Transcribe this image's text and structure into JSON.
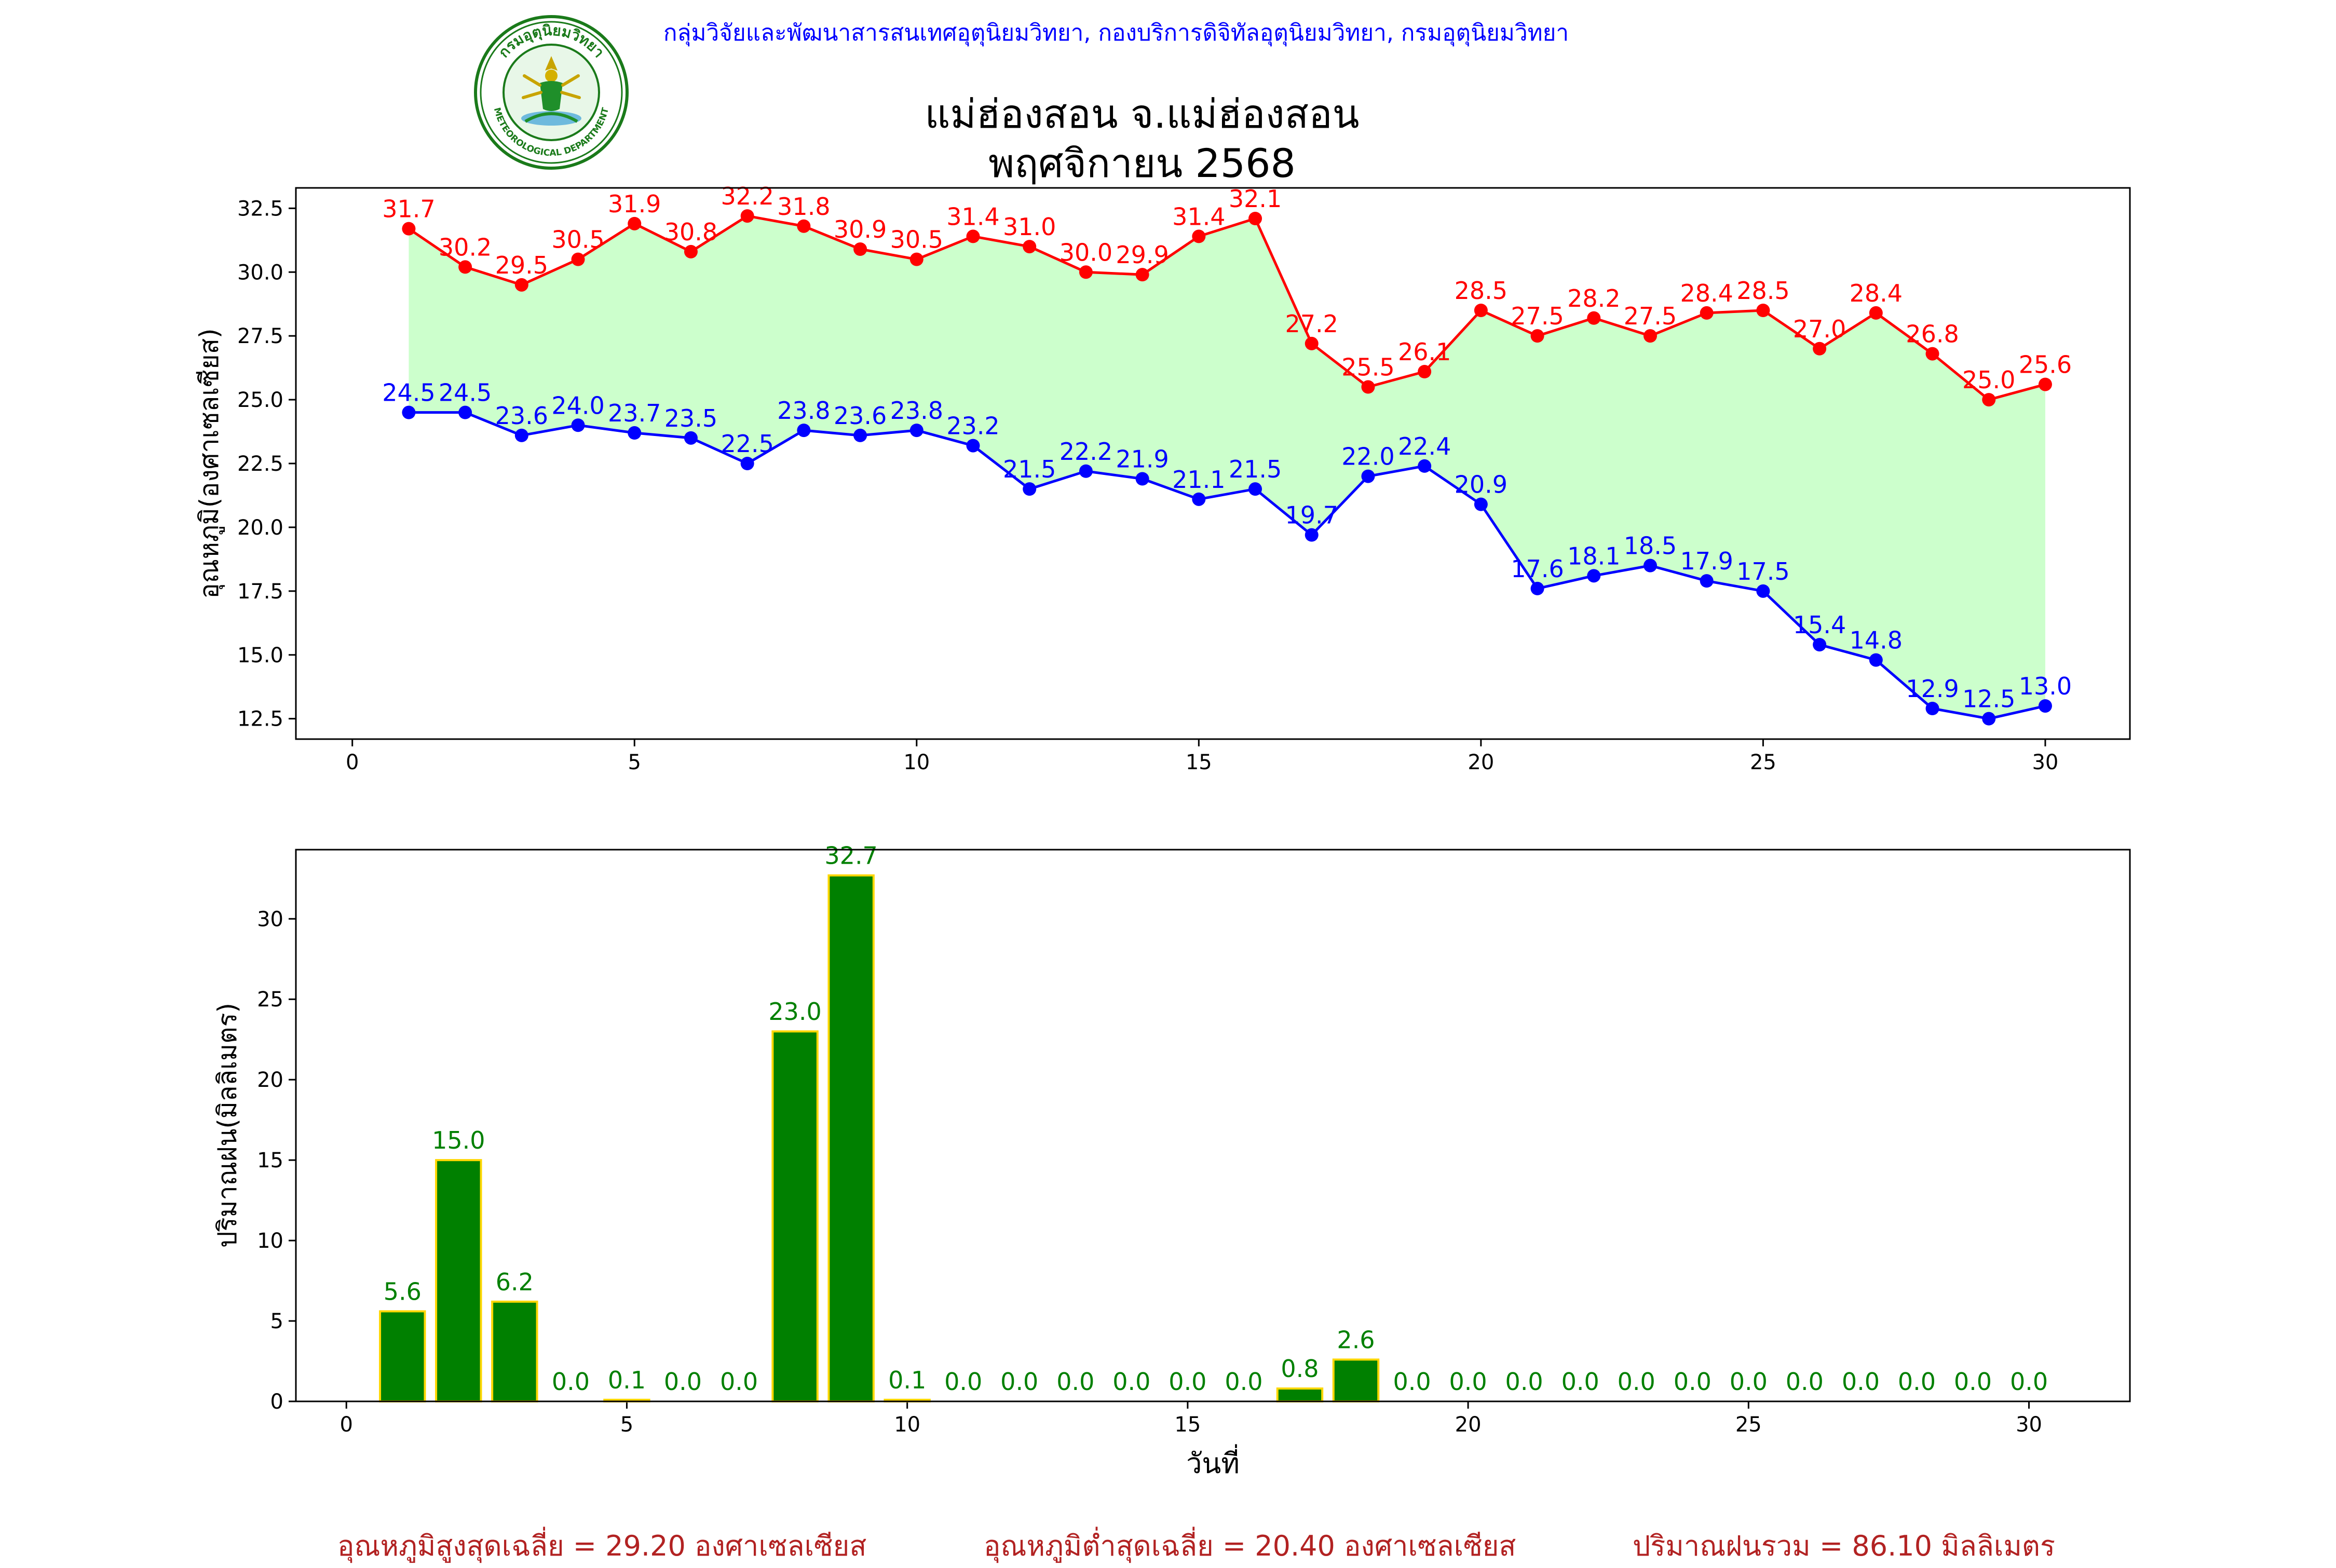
{
  "header": {
    "credit": "กลุ่มวิจัยและพัฒนาสารสนเทศอุตุนิยมวิทยา, กองบริการดิจิทัลอุตุนิยมวิทยา, กรมอุตุนิยมวิทยา",
    "title_line1": "แม่ฮ่องสอน จ.แม่ฮ่องสอน",
    "title_line2": "พฤศจิกายน 2568",
    "logo_text": "METEOROLOGICAL DEPARTMENT",
    "logo_thai": "กรมอุตุนิยมวิทยา"
  },
  "colors": {
    "max_line": "#ff0000",
    "min_line": "#0000ff",
    "band_fill": "#ccffcc",
    "bar_fill": "#008000",
    "bar_edge": "#ffd700",
    "bar_label": "#008000",
    "footer_text": "#b22222",
    "credit_text": "#0000ff"
  },
  "chart_data": [
    {
      "type": "line",
      "title": "",
      "xlabel": "",
      "ylabel": "อุณหภูมิ(องศาเซลเซียส)",
      "x": [
        1,
        2,
        3,
        4,
        5,
        6,
        7,
        8,
        9,
        10,
        11,
        12,
        13,
        14,
        15,
        16,
        17,
        18,
        19,
        20,
        21,
        22,
        23,
        24,
        25,
        26,
        27,
        28,
        29,
        30
      ],
      "xlim": [
        -1,
        31.5
      ],
      "ylim": [
        11.7,
        33.3
      ],
      "xticks": [
        0,
        5,
        10,
        15,
        20,
        25,
        30
      ],
      "yticks": [
        12.5,
        15.0,
        17.5,
        20.0,
        22.5,
        25.0,
        27.5,
        30.0,
        32.5
      ],
      "grid": false,
      "fill_between": true,
      "series": [
        {
          "values": [
            31.7,
            30.2,
            29.5,
            30.5,
            31.9,
            30.8,
            32.2,
            31.8,
            30.9,
            30.5,
            31.4,
            31.0,
            30.0,
            29.9,
            31.4,
            32.1,
            27.2,
            25.5,
            26.1,
            28.5,
            27.5,
            28.2,
            27.5,
            28.4,
            28.5,
            27.0,
            28.4,
            26.8,
            25.0,
            25.6
          ],
          "labels": [
            "31.7",
            "30.2",
            "29.5",
            "30.5",
            "31.9",
            "30.8",
            "32.2",
            "31.8",
            "30.9",
            "30.5",
            "31.4",
            "31.0",
            "30.0",
            "29.9",
            "31.4",
            "32.1",
            "27.2",
            "25.5",
            "26.1",
            "28.5",
            "27.5",
            "28.2",
            "27.5",
            "28.4",
            "28.5",
            "27.0",
            "28.4",
            "26.8",
            "25.0",
            "25.6"
          ]
        },
        {
          "values": [
            24.5,
            24.5,
            23.6,
            24.0,
            23.7,
            23.5,
            22.5,
            23.8,
            23.6,
            23.8,
            23.2,
            21.5,
            22.2,
            21.9,
            21.1,
            21.5,
            19.7,
            22.0,
            22.4,
            20.9,
            17.6,
            18.1,
            18.5,
            17.9,
            17.5,
            15.4,
            14.8,
            12.9,
            12.5,
            13.0
          ],
          "labels": [
            "24.5",
            "24.5",
            "23.6",
            "24.0",
            "23.7",
            "23.5",
            "22.5",
            "23.8",
            "23.6",
            "23.8",
            "23.2",
            "21.5",
            "22.2",
            "21.9",
            "21.1",
            "21.5",
            "19.7",
            "22.0",
            "22.4",
            "20.9",
            "17.6",
            "18.1",
            "18.5",
            "17.9",
            "17.5",
            "15.4",
            "14.8",
            "12.9",
            "12.5",
            "13.0"
          ]
        }
      ]
    },
    {
      "type": "bar",
      "title": "",
      "xlabel": "วันที่",
      "ylabel": "ปริมาณฝน(มิลลิเมตร)",
      "categories": [
        1,
        2,
        3,
        4,
        5,
        6,
        7,
        8,
        9,
        10,
        11,
        12,
        13,
        14,
        15,
        16,
        17,
        18,
        19,
        20,
        21,
        22,
        23,
        24,
        25,
        26,
        27,
        28,
        29,
        30
      ],
      "values": [
        5.6,
        15.0,
        6.2,
        0.0,
        0.1,
        0.0,
        0.0,
        23.0,
        32.7,
        0.1,
        0.0,
        0.0,
        0.0,
        0.0,
        0.0,
        0.0,
        0.8,
        2.6,
        0.0,
        0.0,
        0.0,
        0.0,
        0.0,
        0.0,
        0.0,
        0.0,
        0.0,
        0.0,
        0.0,
        0.0
      ],
      "labels": [
        "5.6",
        "15.0",
        "6.2",
        "0.0",
        "0.1",
        "0.0",
        "0.0",
        "23.0",
        "32.7",
        "0.1",
        "0.0",
        "0.0",
        "0.0",
        "0.0",
        "0.0",
        "0.0",
        "0.8",
        "2.6",
        "0.0",
        "0.0",
        "0.0",
        "0.0",
        "0.0",
        "0.0",
        "0.0",
        "0.0",
        "0.0",
        "0.0",
        "0.0",
        "0.0"
      ],
      "xlim": [
        -0.9,
        31.8
      ],
      "ylim": [
        0,
        34.3
      ],
      "xticks": [
        0,
        5,
        10,
        15,
        20,
        25,
        30
      ],
      "yticks": [
        0,
        5,
        10,
        15,
        20,
        25,
        30
      ],
      "grid": false
    }
  ],
  "footer": {
    "avg_max": "อุณหภูมิสูงสุดเฉลี่ย = 29.20 องศาเซลเซียส",
    "avg_min": "อุณหภูมิต่ำสุดเฉลี่ย = 20.40 องศาเซลเซียส",
    "total_rain": "ปริมาณฝนรวม = 86.10 มิลลิเมตร"
  }
}
